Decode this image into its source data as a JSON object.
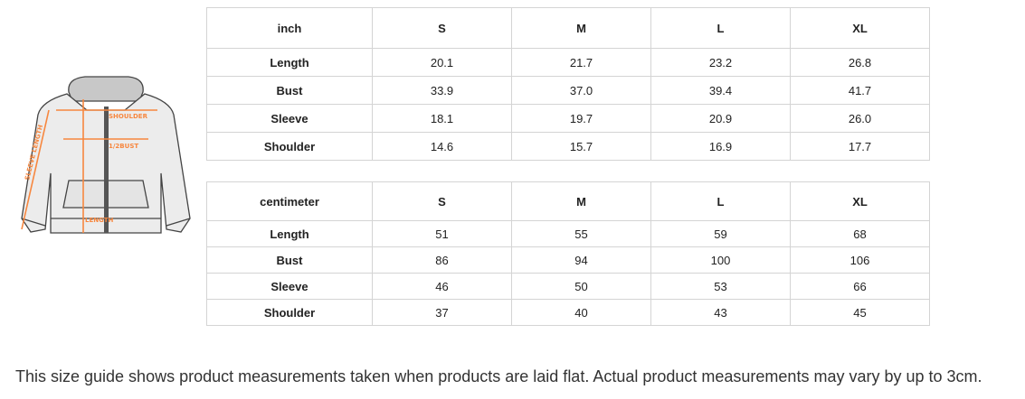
{
  "diagram": {
    "labels": {
      "shoulder": "SHOULDER",
      "bust": "1/2BUST",
      "sleeve": "SLEEVE LENGTH",
      "length": "LENGTH"
    },
    "accent": "#f7873f"
  },
  "inch_table": {
    "headers": [
      "inch",
      "S",
      "M",
      "L",
      "XL"
    ],
    "rows": [
      {
        "label": "Length",
        "values": [
          "20.1",
          "21.7",
          "23.2",
          "26.8"
        ]
      },
      {
        "label": "Bust",
        "values": [
          "33.9",
          "37.0",
          "39.4",
          "41.7"
        ]
      },
      {
        "label": "Sleeve",
        "values": [
          "18.1",
          "19.7",
          "20.9",
          "26.0"
        ]
      },
      {
        "label": "Shoulder",
        "values": [
          "14.6",
          "15.7",
          "16.9",
          "17.7"
        ]
      }
    ]
  },
  "cm_table": {
    "headers": [
      "centimeter",
      "S",
      "M",
      "L",
      "XL"
    ],
    "rows": [
      {
        "label": "Length",
        "values": [
          "51",
          "55",
          "59",
          "68"
        ]
      },
      {
        "label": "Bust",
        "values": [
          "86",
          "94",
          "100",
          "106"
        ]
      },
      {
        "label": "Sleeve",
        "values": [
          "46",
          "50",
          "53",
          "66"
        ]
      },
      {
        "label": "Shoulder",
        "values": [
          "37",
          "40",
          "43",
          "45"
        ]
      }
    ]
  },
  "note": "This size guide shows product measurements taken when products are laid flat. Actual product measurements may vary by up to 3cm."
}
